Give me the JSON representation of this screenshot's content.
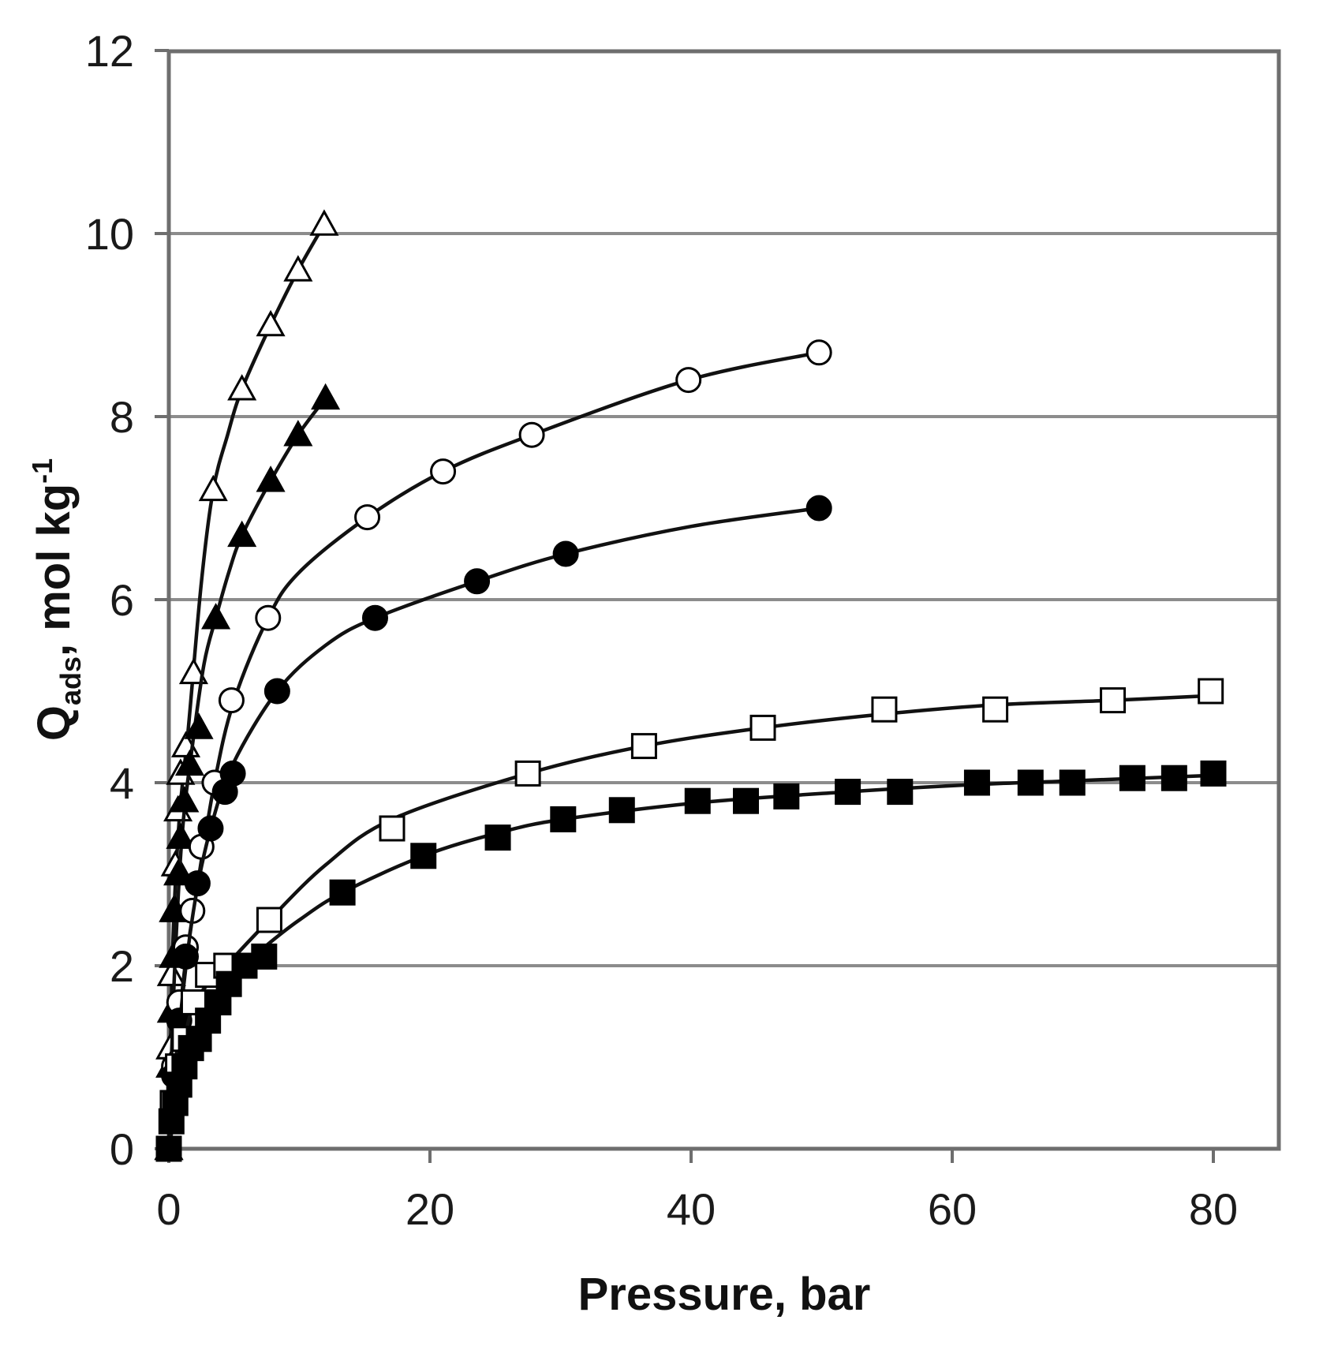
{
  "chart_data": {
    "type": "scatter",
    "title": "",
    "xlabel": "Pressure, bar",
    "ylabel": {
      "main": "Q",
      "subscript": "ads",
      "unit": ", mol kg",
      "superscript": "-1"
    },
    "xlim": [
      0,
      85
    ],
    "ylim": [
      0,
      12
    ],
    "xticks": [
      0,
      20,
      40,
      60,
      80
    ],
    "yticks": [
      0,
      2,
      4,
      6,
      8,
      10,
      12
    ],
    "xtick_labels": [
      "0",
      "20",
      "40",
      "60",
      "80"
    ],
    "ytick_labels": [
      "0",
      "2",
      "4",
      "6",
      "8",
      "10",
      "12"
    ],
    "grid": "horizontal",
    "legend": "none",
    "series": [
      {
        "marker": "open-triangle",
        "x": [
          0,
          0.1,
          0.2,
          0.35,
          0.5,
          0.7,
          0.9,
          1.3,
          1.9,
          3.4,
          5.6,
          7.8,
          9.9,
          11.9
        ],
        "y": [
          0,
          1.1,
          1.9,
          2.6,
          3.1,
          3.7,
          4.1,
          4.4,
          5.2,
          7.2,
          8.3,
          9.0,
          9.6,
          10.1
        ],
        "fit": [
          [
            0,
            0
          ],
          [
            0.3,
            2.2
          ],
          [
            0.8,
            3.6
          ],
          [
            1.5,
            4.6
          ],
          [
            2.5,
            6.2
          ],
          [
            3.4,
            7.2
          ],
          [
            4.5,
            7.8
          ],
          [
            5.6,
            8.3
          ],
          [
            7.8,
            9.0
          ],
          [
            9.9,
            9.6
          ],
          [
            11.9,
            10.1
          ]
        ]
      },
      {
        "marker": "filled-triangle",
        "x": [
          0,
          0.1,
          0.2,
          0.35,
          0.5,
          0.7,
          0.9,
          1.2,
          1.6,
          2.3,
          3.6,
          5.6,
          7.8,
          9.9,
          12.0
        ],
        "y": [
          0,
          0.9,
          1.5,
          2.1,
          2.6,
          3.0,
          3.4,
          3.8,
          4.2,
          4.6,
          5.8,
          6.7,
          7.3,
          7.8,
          8.2
        ],
        "fit": [
          [
            0,
            0
          ],
          [
            0.4,
            1.8
          ],
          [
            1.0,
            3.4
          ],
          [
            1.8,
            4.4
          ],
          [
            2.7,
            5.3
          ],
          [
            3.6,
            5.8
          ],
          [
            4.6,
            6.3
          ],
          [
            5.6,
            6.7
          ],
          [
            7.8,
            7.3
          ],
          [
            9.9,
            7.8
          ],
          [
            12.0,
            8.2
          ]
        ]
      },
      {
        "marker": "open-circle",
        "x": [
          0,
          0.4,
          0.8,
          1.3,
          1.8,
          2.5,
          3.5,
          4.8,
          7.6,
          15.2,
          21.0,
          27.8,
          39.8,
          49.8
        ],
        "y": [
          0,
          0.9,
          1.6,
          2.2,
          2.6,
          3.3,
          4.0,
          4.9,
          5.8,
          6.9,
          7.4,
          7.8,
          8.4,
          8.7
        ],
        "fit": [
          [
            0,
            0
          ],
          [
            1,
            1.7
          ],
          [
            2,
            2.7
          ],
          [
            3.5,
            4.0
          ],
          [
            5,
            4.9
          ],
          [
            7.6,
            5.8
          ],
          [
            10,
            6.3
          ],
          [
            15.2,
            6.9
          ],
          [
            21,
            7.4
          ],
          [
            27.8,
            7.8
          ],
          [
            39.8,
            8.4
          ],
          [
            49.8,
            8.7
          ]
        ]
      },
      {
        "marker": "filled-circle",
        "x": [
          0,
          0.4,
          0.8,
          1.3,
          2.2,
          3.2,
          4.3,
          4.9,
          8.3,
          15.8,
          23.6,
          30.4,
          49.8
        ],
        "y": [
          0,
          0.8,
          1.4,
          2.1,
          2.9,
          3.5,
          3.9,
          4.1,
          5.0,
          5.8,
          6.2,
          6.5,
          7.0
        ],
        "fit": [
          [
            0,
            0
          ],
          [
            1,
            1.6
          ],
          [
            2,
            2.7
          ],
          [
            3.2,
            3.5
          ],
          [
            4.9,
            4.2
          ],
          [
            8.3,
            5.0
          ],
          [
            12,
            5.5
          ],
          [
            15.8,
            5.8
          ],
          [
            23.6,
            6.2
          ],
          [
            30.4,
            6.5
          ],
          [
            40,
            6.8
          ],
          [
            49.8,
            7.0
          ]
        ]
      },
      {
        "marker": "open-square",
        "x": [
          0,
          0.3,
          0.7,
          1.2,
          1.9,
          3.0,
          4.4,
          7.7,
          17.1,
          27.5,
          36.4,
          45.5,
          54.8,
          63.3,
          72.3,
          79.8
        ],
        "y": [
          0,
          0.5,
          0.9,
          1.2,
          1.6,
          1.9,
          2.0,
          2.5,
          3.5,
          4.1,
          4.4,
          4.6,
          4.8,
          4.8,
          4.9,
          5.0
        ],
        "fit": [
          [
            0,
            0
          ],
          [
            1,
            1.0
          ],
          [
            2,
            1.6
          ],
          [
            4.4,
            2.0
          ],
          [
            7.7,
            2.5
          ],
          [
            12,
            3.1
          ],
          [
            17.1,
            3.6
          ],
          [
            27.5,
            4.1
          ],
          [
            36.4,
            4.4
          ],
          [
            45.5,
            4.6
          ],
          [
            54.8,
            4.75
          ],
          [
            63.3,
            4.85
          ],
          [
            72.3,
            4.9
          ],
          [
            79.8,
            4.95
          ]
        ]
      },
      {
        "marker": "filled-square",
        "x": [
          0,
          0.2,
          0.5,
          0.8,
          1.2,
          1.7,
          2.3,
          3.0,
          3.8,
          4.6,
          5.8,
          7.3,
          13.3,
          19.5,
          25.2,
          30.2,
          34.7,
          40.5,
          44.2,
          47.3,
          52.0,
          56.0,
          61.9,
          66.0,
          69.2,
          73.8,
          77.0,
          80.0
        ],
        "y": [
          0,
          0.3,
          0.5,
          0.7,
          0.9,
          1.1,
          1.2,
          1.4,
          1.6,
          1.8,
          2.0,
          2.1,
          2.8,
          3.2,
          3.4,
          3.6,
          3.7,
          3.8,
          3.8,
          3.85,
          3.9,
          3.9,
          4.0,
          4.0,
          4.0,
          4.05,
          4.05,
          4.1
        ],
        "fit": [
          [
            0,
            0
          ],
          [
            1,
            0.8
          ],
          [
            2,
            1.2
          ],
          [
            3.8,
            1.6
          ],
          [
            5.8,
            2.0
          ],
          [
            7.3,
            2.2
          ],
          [
            10,
            2.5
          ],
          [
            13.3,
            2.8
          ],
          [
            19.5,
            3.2
          ],
          [
            25.2,
            3.45
          ],
          [
            30.2,
            3.6
          ],
          [
            40.5,
            3.78
          ],
          [
            52,
            3.9
          ],
          [
            61.9,
            3.98
          ],
          [
            69.2,
            4.02
          ],
          [
            80,
            4.08
          ]
        ]
      }
    ]
  }
}
